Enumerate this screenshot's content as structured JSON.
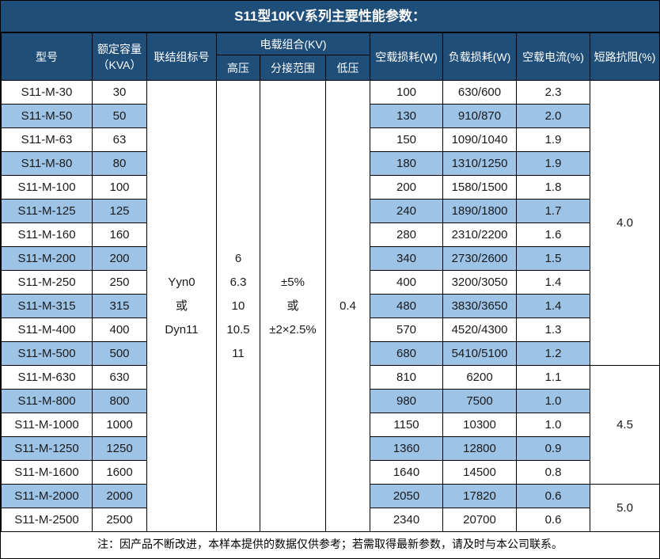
{
  "title": "S11型10KV系列主要性能参数：",
  "colors": {
    "header_bg": "#1F4E79",
    "stripe_bg": "#9DC3E6",
    "border": "#000000",
    "header_text": "#FFFFFF"
  },
  "header": {
    "model": "型号",
    "capacity": "额定容量\n（KVA）",
    "connection_group": "联结组标号",
    "voltage_combo": "电载组合(KV)",
    "hv": "高压",
    "tap_range": "分接范围",
    "lv": "低压",
    "no_load_loss": "空载损耗(W)",
    "load_loss": "负载损耗(W)",
    "no_load_current": "空载电流(%)",
    "impedance": "短路抗阻(%)"
  },
  "merged": {
    "connection_group": "Yyn0\n或\nDyn11",
    "hv": "6\n6.3\n10\n10.5\n11",
    "tap_range": "±5%\n或\n±2×2.5%",
    "lv": "0.4"
  },
  "rows": [
    {
      "model": "S11-M-30",
      "capacity": "30",
      "no_load_loss": "100",
      "load_loss": "630/600",
      "no_load_current": "2.3"
    },
    {
      "model": "S11-M-50",
      "capacity": "50",
      "no_load_loss": "130",
      "load_loss": "910/870",
      "no_load_current": "2.0"
    },
    {
      "model": "S11-M-63",
      "capacity": "63",
      "no_load_loss": "150",
      "load_loss": "1090/1040",
      "no_load_current": "1.9"
    },
    {
      "model": "S11-M-80",
      "capacity": "80",
      "no_load_loss": "180",
      "load_loss": "1310/1250",
      "no_load_current": "1.9"
    },
    {
      "model": "S11-M-100",
      "capacity": "100",
      "no_load_loss": "200",
      "load_loss": "1580/1500",
      "no_load_current": "1.8"
    },
    {
      "model": "S11-M-125",
      "capacity": "125",
      "no_load_loss": "240",
      "load_loss": "1890/1800",
      "no_load_current": "1.7"
    },
    {
      "model": "S11-M-160",
      "capacity": "160",
      "no_load_loss": "280",
      "load_loss": "2310/2200",
      "no_load_current": "1.6"
    },
    {
      "model": "S11-M-200",
      "capacity": "200",
      "no_load_loss": "340",
      "load_loss": "2730/2600",
      "no_load_current": "1.5"
    },
    {
      "model": "S11-M-250",
      "capacity": "250",
      "no_load_loss": "400",
      "load_loss": "3200/3050",
      "no_load_current": "1.4"
    },
    {
      "model": "S11-M-315",
      "capacity": "315",
      "no_load_loss": "480",
      "load_loss": "3830/3650",
      "no_load_current": "1.4"
    },
    {
      "model": "S11-M-400",
      "capacity": "400",
      "no_load_loss": "570",
      "load_loss": "4520/4300",
      "no_load_current": "1.3"
    },
    {
      "model": "S11-M-500",
      "capacity": "500",
      "no_load_loss": "680",
      "load_loss": "5410/5100",
      "no_load_current": "1.2"
    },
    {
      "model": "S11-M-630",
      "capacity": "630",
      "no_load_loss": "810",
      "load_loss": "6200",
      "no_load_current": "1.1"
    },
    {
      "model": "S11-M-800",
      "capacity": "800",
      "no_load_loss": "980",
      "load_loss": "7500",
      "no_load_current": "1.0"
    },
    {
      "model": "S11-M-1000",
      "capacity": "1000",
      "no_load_loss": "1150",
      "load_loss": "10300",
      "no_load_current": "1.0"
    },
    {
      "model": "S11-M-1250",
      "capacity": "1250",
      "no_load_loss": "1360",
      "load_loss": "12800",
      "no_load_current": "0.9"
    },
    {
      "model": "S11-M-1600",
      "capacity": "1600",
      "no_load_loss": "1640",
      "load_loss": "14500",
      "no_load_current": "0.8"
    },
    {
      "model": "S11-M-2000",
      "capacity": "2000",
      "no_load_loss": "2050",
      "load_loss": "17820",
      "no_load_current": "0.6"
    },
    {
      "model": "S11-M-2500",
      "capacity": "2500",
      "no_load_loss": "2340",
      "load_loss": "20700",
      "no_load_current": "0.6"
    }
  ],
  "impedance_groups": [
    {
      "value": "4.0",
      "row_start": 0,
      "row_span": 12
    },
    {
      "value": "4.5",
      "row_start": 12,
      "row_span": 5
    },
    {
      "value": "5.0",
      "row_start": 17,
      "row_span": 2
    }
  ],
  "footer": {
    "note": "注：因产品不断改进，本样本提供的数据仅供参考；若需取得最新参数，请及时与本公司联系。"
  }
}
